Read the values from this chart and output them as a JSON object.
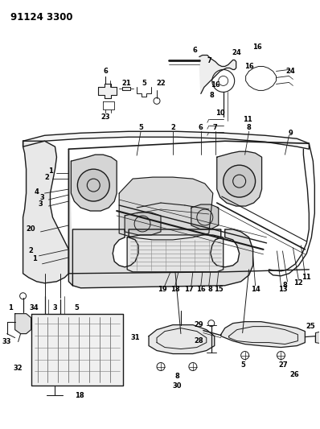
{
  "title_code": "91124 3300",
  "bg_color": "#ffffff",
  "line_color": "#1a1a1a",
  "fig_width": 3.98,
  "fig_height": 5.33,
  "dpi": 100,
  "title_fontsize": 8.5,
  "label_fontsize": 6.0
}
